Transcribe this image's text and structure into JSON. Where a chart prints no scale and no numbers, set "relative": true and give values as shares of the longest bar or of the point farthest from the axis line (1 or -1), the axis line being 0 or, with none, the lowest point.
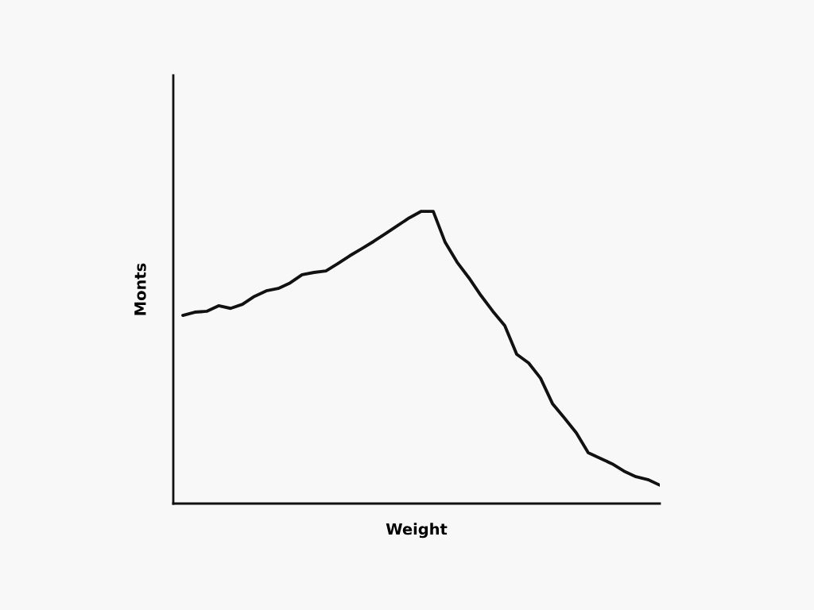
{
  "chart_data": {
    "type": "line",
    "xlabel": "Weight",
    "ylabel": "Monts",
    "relative": true,
    "grid": false,
    "legend": false,
    "marker": "none",
    "line_style": "solid",
    "categories": [
      null,
      null,
      null,
      null,
      null,
      null,
      null,
      null,
      null,
      null,
      null,
      null,
      null,
      null,
      null,
      null,
      null,
      null,
      null,
      null,
      null,
      null,
      null,
      null,
      null,
      null,
      null,
      null,
      null,
      null,
      null,
      null,
      null,
      null,
      null,
      null,
      null,
      null,
      null,
      null,
      null
    ],
    "series": [
      {
        "color": "#111111",
        "values": [
          0.644,
          0.655,
          0.658,
          0.677,
          0.668,
          0.682,
          0.709,
          0.728,
          0.736,
          0.755,
          0.783,
          0.791,
          0.796,
          0.821,
          0.848,
          0.872,
          0.897,
          0.924,
          0.951,
          0.978,
          1,
          1,
          0.894,
          0.826,
          0.772,
          0.712,
          0.658,
          0.609,
          0.511,
          0.481,
          0.429,
          0.342,
          0.293,
          0.242,
          0.174,
          0.155,
          0.136,
          0.111,
          0.092,
          0.082,
          0.063
        ]
      }
    ]
  }
}
